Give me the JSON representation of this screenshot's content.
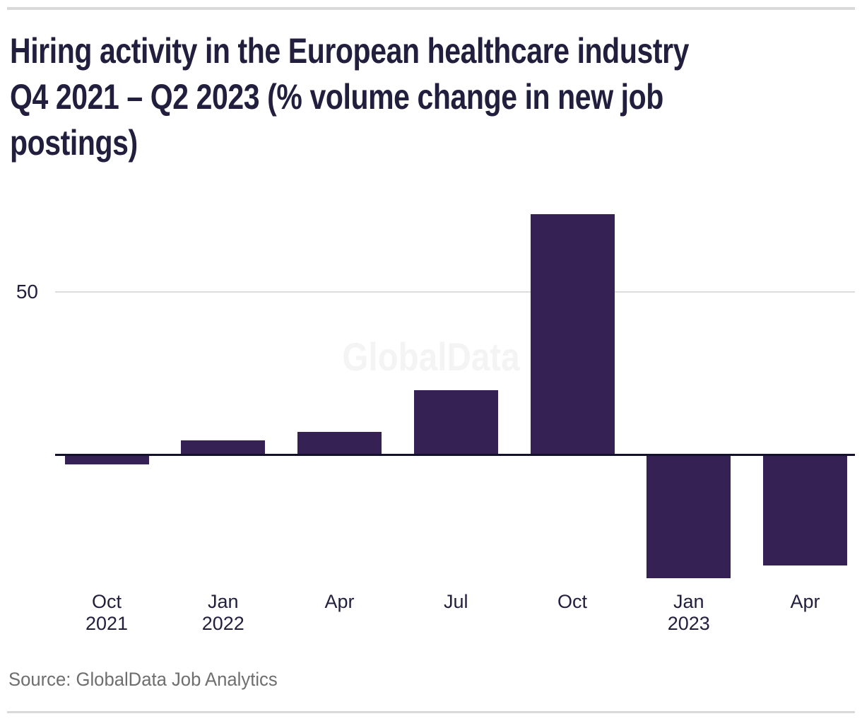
{
  "page": {
    "title": "Hiring activity in the European healthcare industry\nQ4 2021 – Q2 2023 (% volume change in new job\npostings)",
    "watermark": "GlobalData",
    "source_note": "Source: GlobalData Job Analytics"
  },
  "axis": {
    "ytick_label": "50"
  },
  "chart_data": {
    "type": "bar",
    "title": "Hiring activity in the European healthcare industry Q4 2021 – Q2 2023 (% volume change in new job postings)",
    "categories": [
      "Oct 2021",
      "Jan 2022",
      "Apr 2022",
      "Jul 2022",
      "Oct 2022",
      "Jan 2023",
      "Apr 2023"
    ],
    "x_tick_labels": [
      "Oct\n2021",
      "Jan\n2022",
      "Apr",
      "Jul",
      "Oct",
      "Jan\n2023",
      "Apr"
    ],
    "values": [
      -3,
      4.5,
      7,
      20,
      74,
      -38,
      -34
    ],
    "xlabel": "",
    "ylabel": "% volume change in new job postings",
    "yticks": [
      50
    ],
    "ylim": [
      -45,
      80
    ],
    "grid": "single horizontal gridline at y=50",
    "legend": false,
    "bar_color": "#362154",
    "axis_line_color": "#14122b",
    "gridline_color": "#dcdcdc",
    "text_color": "#221f3e",
    "watermark": "GlobalData",
    "source": "GlobalData Job Analytics"
  }
}
